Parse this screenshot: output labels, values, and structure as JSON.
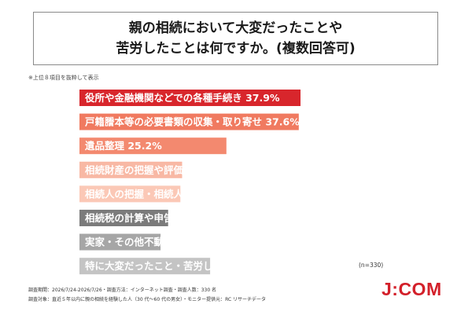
{
  "header": {
    "title_line1": "親の相続において大変だったことや",
    "title_line2": "苦労したことは何ですか。(複数回答可)"
  },
  "note": "※上位８項目を抜粋して表示",
  "chart_data": {
    "type": "bar",
    "orientation": "horizontal",
    "categories": [
      "役所や金融機関などでの各種手続き",
      "戸籍謄本等の必要書類の収集・取り寄せ",
      "遺品整理",
      "相続財産の把握や評価",
      "相続人の把握・相続人間での調整・連絡",
      "相続税の計算や申告・納付資金準備",
      "実家・その他不動産の処分",
      "特に大変だったこと・苦労したことはない"
    ],
    "values": [
      37.9,
      37.6,
      25.2,
      17.6,
      17.3,
      15.2,
      13.9,
      22.4
    ],
    "unit": "%",
    "colors": [
      "#d8262c",
      "#f07a60",
      "#f3896f",
      "#f8b8a4",
      "#fbc8b6",
      "#7b7b7b",
      "#a6a6a6",
      "#c4c4c4"
    ],
    "label_colors": [
      "#ffffff",
      "#ffffff",
      "#ffffff",
      "#ffffff",
      "#ffffff",
      "#ffffff",
      "#ffffff",
      "#ffffff"
    ],
    "xlim": [
      0,
      40
    ],
    "n_label": "(n=330)"
  },
  "footer": {
    "line1": "調査期間：2026/7/24-2026/7/26・調査方法：インターネット調査・調査人数：330 名",
    "line2": "調査対象：直近５年以内に親の相続を経験した人（30 代～60 代の男女）・モニター提供元：RC リサーチデータ"
  },
  "logo": "J:COM",
  "colors": {
    "brand": "#d3202a"
  }
}
